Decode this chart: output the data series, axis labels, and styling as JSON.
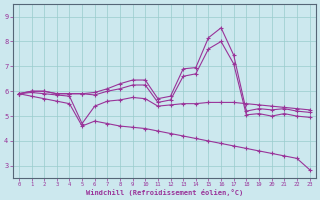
{
  "xlabel": "Windchill (Refroidissement éolien,°C)",
  "ylabel": "",
  "bg_color": "#cce8ee",
  "line_color": "#993399",
  "grid_color": "#99cccc",
  "x": [
    0,
    1,
    2,
    3,
    4,
    5,
    6,
    7,
    8,
    9,
    10,
    11,
    12,
    13,
    14,
    15,
    16,
    17,
    18,
    19,
    20,
    21,
    22,
    23
  ],
  "series1": [
    5.9,
    6.0,
    6.0,
    5.9,
    5.9,
    5.9,
    5.95,
    6.1,
    6.3,
    6.45,
    6.45,
    5.7,
    5.8,
    6.9,
    6.95,
    8.15,
    8.55,
    7.45,
    5.2,
    5.3,
    5.25,
    5.3,
    5.2,
    5.15
  ],
  "series2": [
    5.9,
    6.0,
    6.0,
    5.9,
    5.9,
    5.9,
    5.85,
    6.0,
    6.1,
    6.25,
    6.25,
    5.55,
    5.65,
    6.6,
    6.7,
    7.7,
    8.0,
    7.1,
    5.05,
    5.1,
    5.0,
    5.1,
    5.0,
    4.95
  ],
  "series3": [
    5.9,
    5.95,
    5.9,
    5.85,
    5.8,
    4.7,
    5.4,
    5.6,
    5.65,
    5.75,
    5.7,
    5.4,
    5.45,
    5.5,
    5.5,
    5.55,
    5.55,
    5.55,
    5.5,
    5.45,
    5.4,
    5.35,
    5.3,
    5.25
  ],
  "series4": [
    5.9,
    5.8,
    5.7,
    5.6,
    5.5,
    4.6,
    4.8,
    4.7,
    4.6,
    4.55,
    4.5,
    4.4,
    4.3,
    4.2,
    4.1,
    4.0,
    3.9,
    3.8,
    3.7,
    3.6,
    3.5,
    3.4,
    3.3,
    2.85
  ],
  "ylim": [
    2.5,
    9.5
  ],
  "xlim": [
    -0.5,
    23.5
  ],
  "yticks": [
    3,
    4,
    5,
    6,
    7,
    8,
    9
  ],
  "xticks": [
    0,
    1,
    2,
    3,
    4,
    5,
    6,
    7,
    8,
    9,
    10,
    11,
    12,
    13,
    14,
    15,
    16,
    17,
    18,
    19,
    20,
    21,
    22,
    23
  ]
}
